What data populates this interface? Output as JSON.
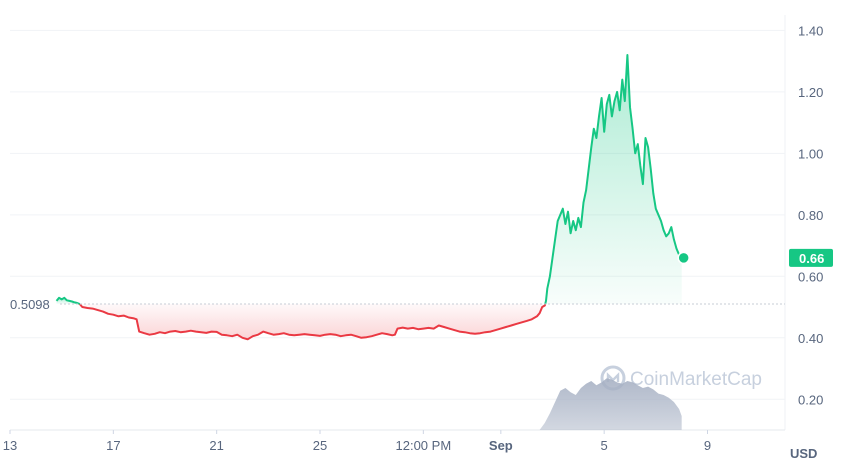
{
  "chart_data": {
    "type": "line",
    "currency": "USD",
    "watermark": "CoinMarketCap",
    "reference_value": 0.5098,
    "reference_label": "0.5098",
    "last_value": 0.66,
    "last_label": "0.66",
    "ylim": [
      0.1,
      1.45
    ],
    "y_ticks": [
      {
        "v": 0.2,
        "label": "0.20"
      },
      {
        "v": 0.4,
        "label": "0.40"
      },
      {
        "v": 0.6,
        "label": "0.60"
      },
      {
        "v": 0.8,
        "label": "0.80"
      },
      {
        "v": 1.0,
        "label": "1.00"
      },
      {
        "v": 1.2,
        "label": "1.20"
      },
      {
        "v": 1.4,
        "label": "1.40"
      }
    ],
    "x_ticks": [
      {
        "label": "13",
        "i": 0
      },
      {
        "label": "17",
        "i": 40
      },
      {
        "label": "21",
        "i": 80
      },
      {
        "label": "25",
        "i": 120
      },
      {
        "label": "12:00 PM",
        "i": 160
      },
      {
        "label": "Sep",
        "i": 190,
        "bold": true
      },
      {
        "label": "5",
        "i": 230
      },
      {
        "label": "9",
        "i": 270
      }
    ],
    "x_index_range": [
      0,
      300
    ],
    "price_series": {
      "name": "Price",
      "points": [
        [
          18,
          0.52
        ],
        [
          19,
          0.53
        ],
        [
          20,
          0.525
        ],
        [
          21,
          0.53
        ],
        [
          22,
          0.522
        ],
        [
          23,
          0.52
        ],
        [
          24,
          0.518
        ],
        [
          25,
          0.515
        ],
        [
          26,
          0.513
        ],
        [
          27,
          0.51
        ],
        [
          27.5,
          0.505
        ],
        [
          28,
          0.5
        ],
        [
          30,
          0.497
        ],
        [
          32,
          0.495
        ],
        [
          34,
          0.49
        ],
        [
          36,
          0.485
        ],
        [
          38,
          0.478
        ],
        [
          40,
          0.475
        ],
        [
          42,
          0.47
        ],
        [
          44,
          0.472
        ],
        [
          46,
          0.466
        ],
        [
          48,
          0.463
        ],
        [
          49,
          0.46
        ],
        [
          50,
          0.42
        ],
        [
          52,
          0.415
        ],
        [
          54,
          0.41
        ],
        [
          56,
          0.413
        ],
        [
          58,
          0.418
        ],
        [
          60,
          0.415
        ],
        [
          62,
          0.42
        ],
        [
          64,
          0.422
        ],
        [
          66,
          0.418
        ],
        [
          68,
          0.42
        ],
        [
          70,
          0.423
        ],
        [
          72,
          0.42
        ],
        [
          74,
          0.418
        ],
        [
          76,
          0.416
        ],
        [
          78,
          0.42
        ],
        [
          80,
          0.419
        ],
        [
          82,
          0.41
        ],
        [
          84,
          0.408
        ],
        [
          86,
          0.405
        ],
        [
          88,
          0.41
        ],
        [
          90,
          0.4
        ],
        [
          92,
          0.395
        ],
        [
          94,
          0.405
        ],
        [
          96,
          0.41
        ],
        [
          98,
          0.42
        ],
        [
          100,
          0.415
        ],
        [
          102,
          0.41
        ],
        [
          104,
          0.412
        ],
        [
          106,
          0.415
        ],
        [
          108,
          0.41
        ],
        [
          110,
          0.408
        ],
        [
          112,
          0.41
        ],
        [
          114,
          0.412
        ],
        [
          116,
          0.41
        ],
        [
          118,
          0.408
        ],
        [
          120,
          0.406
        ],
        [
          122,
          0.41
        ],
        [
          124,
          0.412
        ],
        [
          126,
          0.41
        ],
        [
          128,
          0.405
        ],
        [
          130,
          0.408
        ],
        [
          132,
          0.41
        ],
        [
          134,
          0.405
        ],
        [
          136,
          0.4
        ],
        [
          138,
          0.402
        ],
        [
          140,
          0.405
        ],
        [
          142,
          0.41
        ],
        [
          144,
          0.415
        ],
        [
          146,
          0.412
        ],
        [
          148,
          0.408
        ],
        [
          149,
          0.41
        ],
        [
          150,
          0.43
        ],
        [
          152,
          0.433
        ],
        [
          154,
          0.43
        ],
        [
          156,
          0.432
        ],
        [
          158,
          0.428
        ],
        [
          160,
          0.43
        ],
        [
          162,
          0.432
        ],
        [
          164,
          0.43
        ],
        [
          166,
          0.44
        ],
        [
          168,
          0.435
        ],
        [
          170,
          0.43
        ],
        [
          172,
          0.425
        ],
        [
          174,
          0.42
        ],
        [
          176,
          0.418
        ],
        [
          178,
          0.415
        ],
        [
          180,
          0.413
        ],
        [
          182,
          0.415
        ],
        [
          184,
          0.418
        ],
        [
          186,
          0.42
        ],
        [
          188,
          0.425
        ],
        [
          190,
          0.43
        ],
        [
          192,
          0.435
        ],
        [
          194,
          0.44
        ],
        [
          196,
          0.445
        ],
        [
          198,
          0.45
        ],
        [
          200,
          0.455
        ],
        [
          202,
          0.46
        ],
        [
          204,
          0.47
        ],
        [
          205,
          0.48
        ],
        [
          206,
          0.5
        ],
        [
          207,
          0.505
        ],
        [
          207.5,
          0.52
        ],
        [
          208,
          0.56
        ],
        [
          209,
          0.6
        ],
        [
          210,
          0.66
        ],
        [
          211,
          0.72
        ],
        [
          212,
          0.78
        ],
        [
          213,
          0.8
        ],
        [
          214,
          0.82
        ],
        [
          215,
          0.77
        ],
        [
          216,
          0.81
        ],
        [
          217,
          0.74
        ],
        [
          218,
          0.78
        ],
        [
          219,
          0.75
        ],
        [
          220,
          0.79
        ],
        [
          221,
          0.76
        ],
        [
          222,
          0.84
        ],
        [
          223,
          0.88
        ],
        [
          224,
          0.95
        ],
        [
          225,
          1.02
        ],
        [
          226,
          1.08
        ],
        [
          227,
          1.05
        ],
        [
          228,
          1.12
        ],
        [
          229,
          1.18
        ],
        [
          230,
          1.07
        ],
        [
          231,
          1.16
        ],
        [
          232,
          1.19
        ],
        [
          233,
          1.12
        ],
        [
          234,
          1.17
        ],
        [
          235,
          1.2
        ],
        [
          236,
          1.14
        ],
        [
          237,
          1.24
        ],
        [
          238,
          1.17
        ],
        [
          239,
          1.32
        ],
        [
          240,
          1.15
        ],
        [
          241,
          1.08
        ],
        [
          242,
          1.0
        ],
        [
          243,
          1.03
        ],
        [
          244,
          0.96
        ],
        [
          245,
          0.9
        ],
        [
          246,
          1.05
        ],
        [
          247,
          1.02
        ],
        [
          248,
          0.95
        ],
        [
          249,
          0.87
        ],
        [
          250,
          0.82
        ],
        [
          251,
          0.8
        ],
        [
          252,
          0.78
        ],
        [
          253,
          0.75
        ],
        [
          254,
          0.73
        ],
        [
          255,
          0.74
        ],
        [
          256,
          0.76
        ],
        [
          257,
          0.72
        ],
        [
          258,
          0.69
        ],
        [
          259,
          0.67
        ],
        [
          260,
          0.66
        ]
      ]
    },
    "volume_series": {
      "name": "Volume",
      "points": [
        [
          205,
          0.0
        ],
        [
          207,
          0.05
        ],
        [
          209,
          0.12
        ],
        [
          211,
          0.2
        ],
        [
          213,
          0.28
        ],
        [
          215,
          0.3
        ],
        [
          217,
          0.27
        ],
        [
          219,
          0.25
        ],
        [
          221,
          0.3
        ],
        [
          223,
          0.33
        ],
        [
          225,
          0.35
        ],
        [
          227,
          0.32
        ],
        [
          229,
          0.34
        ],
        [
          231,
          0.37
        ],
        [
          233,
          0.36
        ],
        [
          235,
          0.34
        ],
        [
          237,
          0.33
        ],
        [
          239,
          0.35
        ],
        [
          241,
          0.34
        ],
        [
          243,
          0.32
        ],
        [
          245,
          0.3
        ],
        [
          247,
          0.31
        ],
        [
          249,
          0.29
        ],
        [
          251,
          0.26
        ],
        [
          253,
          0.25
        ],
        [
          255,
          0.23
        ],
        [
          257,
          0.2
        ],
        [
          259,
          0.15
        ],
        [
          260,
          0.1
        ]
      ]
    }
  }
}
